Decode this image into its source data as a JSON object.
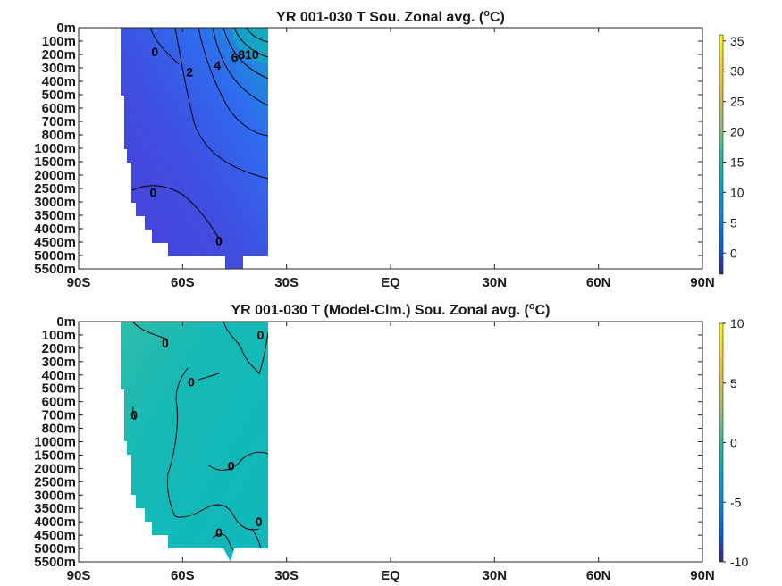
{
  "chart_data": [
    {
      "type": "heatmap",
      "title": "YR 001-030 T Sou. Zonal avg. (",
      "title_superscript": "o",
      "title_suffix": "C)",
      "x_ticks": [
        "90S",
        "60S",
        "30S",
        "EQ",
        "30N",
        "60N",
        "90N"
      ],
      "x_tick_values": [
        -90,
        -60,
        -30,
        0,
        30,
        60,
        90
      ],
      "y_ticks": [
        "0m",
        "100m",
        "200m",
        "300m",
        "400m",
        "500m",
        "600m",
        "700m",
        "800m",
        "1000m",
        "1500m",
        "2000m",
        "2500m",
        "3000m",
        "3500m",
        "4000m",
        "4500m",
        "5000m",
        "5500m"
      ],
      "xlim": [
        -90,
        90
      ],
      "colorbar": {
        "ticks": [
          "35",
          "30",
          "25",
          "20",
          "15",
          "10",
          "5",
          "0"
        ],
        "tick_values": [
          35,
          30,
          25,
          20,
          15,
          10,
          5,
          0
        ],
        "range": [
          -3.5,
          36
        ]
      },
      "data_lat_range": [
        -78,
        -35
      ],
      "contour_labels": [
        {
          "text": "0",
          "lat": -68,
          "depth_level": 1.8
        },
        {
          "text": "2",
          "lat": -58,
          "depth_level": 3.3
        },
        {
          "text": "4",
          "lat": -50,
          "depth_level": 2.8
        },
        {
          "text": "6",
          "lat": -45,
          "depth_level": 2.2
        },
        {
          "text": "8",
          "lat": -43,
          "depth_level": 2.0
        },
        {
          "text": "10",
          "lat": -40,
          "depth_level": 2.0
        },
        {
          "text": "0",
          "lat": -68.5,
          "depth_level": 12.3
        },
        {
          "text": "0",
          "lat": -49.5,
          "depth_level": 15.9
        }
      ]
    },
    {
      "type": "heatmap",
      "title": "YR 001-030 T (Model-Clm.) Sou. Zonal avg. (",
      "title_superscript": "o",
      "title_suffix": "C)",
      "x_ticks": [
        "90S",
        "60S",
        "30S",
        "EQ",
        "30N",
        "60N",
        "90N"
      ],
      "x_tick_values": [
        -90,
        -60,
        -30,
        0,
        30,
        60,
        90
      ],
      "y_ticks": [
        "0m",
        "100m",
        "200m",
        "300m",
        "400m",
        "500m",
        "600m",
        "700m",
        "800m",
        "1000m",
        "1500m",
        "2000m",
        "2500m",
        "3000m",
        "3500m",
        "4000m",
        "4500m",
        "5000m",
        "5500m"
      ],
      "xlim": [
        -90,
        90
      ],
      "colorbar": {
        "ticks": [
          "10",
          "5",
          "0",
          "-5",
          "-10"
        ],
        "tick_values": [
          10,
          5,
          0,
          -5,
          -10
        ],
        "range": [
          -10,
          10
        ]
      },
      "data_lat_range": [
        -78,
        -35
      ],
      "contour_labels": [
        {
          "text": "0",
          "lat": -65,
          "depth_level": 1.6
        },
        {
          "text": "0",
          "lat": -37.5,
          "depth_level": 1.0
        },
        {
          "text": "0",
          "lat": -57.5,
          "depth_level": 4.5
        },
        {
          "text": "0",
          "lat": -74,
          "depth_level": 7.0
        },
        {
          "text": "0",
          "lat": -46,
          "depth_level": 10.8
        },
        {
          "text": "0",
          "lat": -38,
          "depth_level": 15.0
        },
        {
          "text": "0",
          "lat": -49.5,
          "depth_level": 15.8
        }
      ]
    }
  ]
}
